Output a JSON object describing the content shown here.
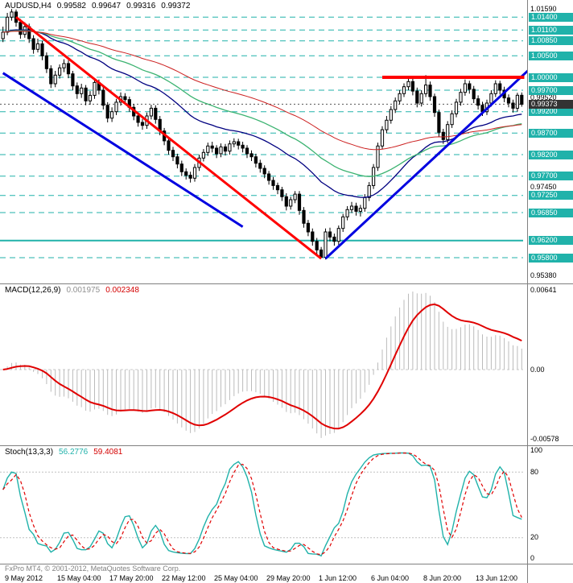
{
  "footer": {
    "copyright": "FxPro MT4, © 2001-2012, MetaQuotes Software Corp."
  },
  "chart_data": {
    "type": "candlestick",
    "symbol_period": "AUDUSD,H4",
    "ohlc_display": {
      "open": "0.99582",
      "high": "0.99647",
      "low": "0.99316",
      "close": "0.99372"
    },
    "price_range": {
      "top": 1.018,
      "bottom": 0.952
    },
    "level_color": "#20B2AA",
    "x_labels": [
      "9 May 2012",
      "15 May 04:00",
      "17 May 20:00",
      "22 May 12:00",
      "25 May 04:00",
      "29 May 20:00",
      "1 Jun 12:00",
      "6 Jun 04:00",
      "8 Jun 20:00",
      "13 Jun 12:00"
    ],
    "price_axis": {
      "plain_labels": [
        {
          "price": 1.0159,
          "label": "1.01590"
        },
        {
          "price": 0.9952,
          "label": "0.99520"
        },
        {
          "price": 0.9745,
          "label": "0.97450"
        },
        {
          "price": 0.9538,
          "label": "0.95380"
        }
      ],
      "bid": {
        "price": 0.99373,
        "label": "0.99373",
        "color": "#333333"
      }
    },
    "levels": [
      {
        "price": 1.014,
        "label": "1.01400",
        "style": "dashed"
      },
      {
        "price": 1.011,
        "label": "1.01100",
        "style": "dashed"
      },
      {
        "price": 1.0085,
        "label": "1.00850",
        "style": "dashed"
      },
      {
        "price": 1.005,
        "label": "1.00500",
        "style": "dashed"
      },
      {
        "price": 1.0,
        "label": "1.00000",
        "style": "dashed"
      },
      {
        "price": 0.997,
        "label": "0.99700",
        "style": "dashed"
      },
      {
        "price": 0.992,
        "label": "0.99200",
        "style": "dashed"
      },
      {
        "price": 0.987,
        "label": "0.98700",
        "style": "dashed"
      },
      {
        "price": 0.982,
        "label": "0.98200",
        "style": "dashed"
      },
      {
        "price": 0.977,
        "label": "0.97700",
        "style": "dashed"
      },
      {
        "price": 0.9725,
        "label": "0.97250",
        "style": "dashed"
      },
      {
        "price": 0.9685,
        "label": "0.96850",
        "style": "dashed"
      },
      {
        "price": 0.962,
        "label": "0.96200",
        "style": "solid"
      },
      {
        "price": 0.958,
        "label": "0.95800",
        "style": "dashed"
      }
    ],
    "trendlines": [
      {
        "name": "trendline-descending-red",
        "color": "#FF0000",
        "width": 3,
        "from": {
          "i": 3,
          "price": 1.014
        },
        "to": {
          "i": 73,
          "price": 0.9578
        }
      },
      {
        "name": "trendline-descending-blue",
        "color": "#0000E0",
        "width": 3,
        "from": {
          "i": 0,
          "price": 1.001
        },
        "to": {
          "i": 55,
          "price": 0.9652
        }
      },
      {
        "name": "trendline-ascending-blue",
        "color": "#0000E0",
        "width": 3,
        "from": {
          "i": 74,
          "price": 0.9578
        },
        "to": {
          "i": 123,
          "price": 1.004
        }
      },
      {
        "name": "resistance-line-red",
        "color": "#FF0000",
        "width": 4,
        "from": {
          "i": 87,
          "price": 1.0
        },
        "to": {
          "i": 119.6,
          "price": 1.0
        }
      }
    ],
    "moving_averages": [
      {
        "name": "ma-line-navy",
        "period": 34,
        "color": "#000080",
        "width": 1.3
      },
      {
        "name": "ma-line-green",
        "period": 55,
        "color": "#3CB371",
        "width": 1.3
      },
      {
        "name": "ma-line-red",
        "period": 89,
        "color": "#CC2020",
        "width": 1
      }
    ],
    "macd": {
      "label": "MACD(12,26,9)",
      "fast": 12,
      "slow": 26,
      "signal_period": 9,
      "value_main": "0.001975",
      "value_signal": "0.002348",
      "axis": {
        "max_label": "0.00641",
        "zero_label": "0.00",
        "min_label": "-0.00578"
      },
      "histogram_color": "#BBBBBB",
      "signal_color": "#E00000"
    },
    "stoch": {
      "label": "Stoch(13,3,3)",
      "k": 13,
      "d": 3,
      "slowing": 3,
      "value_main": "56.2776",
      "value_signal": "59.4081",
      "axis_labels": [
        {
          "v": 100,
          "label": "100"
        },
        {
          "v": 80,
          "label": "80"
        },
        {
          "v": 20,
          "label": "20"
        },
        {
          "v": 0,
          "label": "0"
        }
      ],
      "bands": [
        80,
        20
      ],
      "main_color": "#20B2AA",
      "signal_color": "#E00000"
    },
    "candles": [
      [
        1.009,
        1.0118,
        1.0082,
        1.0105
      ],
      [
        1.0105,
        1.015,
        1.0098,
        1.014
      ],
      [
        1.014,
        1.0159,
        1.0132,
        1.0152
      ],
      [
        1.0152,
        1.0158,
        1.0118,
        1.0128
      ],
      [
        1.0128,
        1.0136,
        1.009,
        1.01
      ],
      [
        1.01,
        1.0128,
        1.0092,
        1.0118
      ],
      [
        1.0118,
        1.0125,
        1.008,
        1.009
      ],
      [
        1.009,
        1.0098,
        1.0055,
        1.0065
      ],
      [
        1.0065,
        1.009,
        1.0058,
        1.0078
      ],
      [
        1.0078,
        1.0085,
        1.004,
        1.005
      ],
      [
        1.005,
        1.0058,
        1.001,
        1.002
      ],
      [
        1.002,
        1.0028,
        0.9975,
        0.9985
      ],
      [
        0.9985,
        1.0015,
        0.9977,
        1.0005
      ],
      [
        1.0005,
        1.003,
        0.9997,
        1.0022
      ],
      [
        1.0022,
        1.0042,
        1.0012,
        1.0032
      ],
      [
        1.0032,
        1.004,
        0.9998,
        1.0008
      ],
      [
        1.0008,
        1.0015,
        0.997,
        0.998
      ],
      [
        0.998,
        0.9988,
        0.995,
        0.9962
      ],
      [
        0.9962,
        0.9985,
        0.9952,
        0.9975
      ],
      [
        0.9975,
        0.9982,
        0.9935,
        0.9945
      ],
      [
        0.9945,
        0.9968,
        0.9936,
        0.9958
      ],
      [
        0.9958,
        0.9996,
        0.995,
        0.9988
      ],
      [
        0.9988,
        0.9995,
        0.996,
        0.997
      ],
      [
        0.997,
        0.9978,
        0.9925,
        0.9935
      ],
      [
        0.9935,
        0.9942,
        0.9895,
        0.9905
      ],
      [
        0.9905,
        0.993,
        0.9896,
        0.992
      ],
      [
        0.992,
        0.995,
        0.9912,
        0.9942
      ],
      [
        0.9942,
        0.9965,
        0.9934,
        0.9955
      ],
      [
        0.9955,
        0.9963,
        0.9938,
        0.9948
      ],
      [
        0.9948,
        0.9955,
        0.992,
        0.993
      ],
      [
        0.993,
        0.9938,
        0.99,
        0.991
      ],
      [
        0.991,
        0.9918,
        0.9885,
        0.9895
      ],
      [
        0.9895,
        0.9903,
        0.9878,
        0.9888
      ],
      [
        0.9888,
        0.9918,
        0.988,
        0.991
      ],
      [
        0.991,
        0.9936,
        0.9902,
        0.9928
      ],
      [
        0.9928,
        0.9935,
        0.9892,
        0.9902
      ],
      [
        0.9902,
        0.991,
        0.9865,
        0.9875
      ],
      [
        0.9875,
        0.9882,
        0.9842,
        0.9852
      ],
      [
        0.9852,
        0.986,
        0.982,
        0.983
      ],
      [
        0.983,
        0.9838,
        0.9805,
        0.9815
      ],
      [
        0.9815,
        0.9822,
        0.9788,
        0.9798
      ],
      [
        0.9798,
        0.9806,
        0.977,
        0.978
      ],
      [
        0.978,
        0.9788,
        0.9762,
        0.9772
      ],
      [
        0.9772,
        0.978,
        0.9755,
        0.9765
      ],
      [
        0.9765,
        0.9798,
        0.9757,
        0.979
      ],
      [
        0.979,
        0.982,
        0.9782,
        0.9812
      ],
      [
        0.9812,
        0.9833,
        0.9804,
        0.9825
      ],
      [
        0.9825,
        0.9848,
        0.9817,
        0.984
      ],
      [
        0.984,
        0.985,
        0.9825,
        0.9835
      ],
      [
        0.9835,
        0.9842,
        0.9812,
        0.9822
      ],
      [
        0.9822,
        0.9846,
        0.9814,
        0.9838
      ],
      [
        0.9838,
        0.9845,
        0.9818,
        0.9828
      ],
      [
        0.9828,
        0.9853,
        0.982,
        0.9845
      ],
      [
        0.9845,
        0.9858,
        0.9837,
        0.985
      ],
      [
        0.985,
        0.9857,
        0.9832,
        0.9842
      ],
      [
        0.9842,
        0.985,
        0.9825,
        0.9835
      ],
      [
        0.9835,
        0.9842,
        0.9812,
        0.9822
      ],
      [
        0.9822,
        0.983,
        0.9805,
        0.9815
      ],
      [
        0.9815,
        0.9822,
        0.979,
        0.98
      ],
      [
        0.98,
        0.9808,
        0.9778,
        0.9788
      ],
      [
        0.9788,
        0.9795,
        0.9765,
        0.9775
      ],
      [
        0.9775,
        0.9782,
        0.975,
        0.976
      ],
      [
        0.976,
        0.9768,
        0.9738,
        0.9748
      ],
      [
        0.9748,
        0.9755,
        0.9728,
        0.9738
      ],
      [
        0.9738,
        0.9745,
        0.9712,
        0.9722
      ],
      [
        0.9722,
        0.973,
        0.969,
        0.97
      ],
      [
        0.97,
        0.9722,
        0.9692,
        0.9715
      ],
      [
        0.9715,
        0.9735,
        0.9707,
        0.9728
      ],
      [
        0.9728,
        0.9735,
        0.968,
        0.969
      ],
      [
        0.969,
        0.9698,
        0.965,
        0.966
      ],
      [
        0.966,
        0.9668,
        0.963,
        0.964
      ],
      [
        0.964,
        0.9648,
        0.9608,
        0.9618
      ],
      [
        0.9618,
        0.9626,
        0.9588,
        0.9598
      ],
      [
        0.9598,
        0.9605,
        0.958,
        0.9581
      ],
      [
        0.9581,
        0.9648,
        0.9576,
        0.964
      ],
      [
        0.964,
        0.965,
        0.9618,
        0.9628
      ],
      [
        0.9628,
        0.9636,
        0.9608,
        0.9618
      ],
      [
        0.9618,
        0.9655,
        0.961,
        0.9648
      ],
      [
        0.9648,
        0.9682,
        0.964,
        0.9675
      ],
      [
        0.9675,
        0.97,
        0.9667,
        0.9692
      ],
      [
        0.9692,
        0.971,
        0.9684,
        0.97
      ],
      [
        0.97,
        0.9708,
        0.9678,
        0.9688
      ],
      [
        0.9688,
        0.9703,
        0.9676,
        0.9695
      ],
      [
        0.9695,
        0.9728,
        0.9687,
        0.972
      ],
      [
        0.972,
        0.9756,
        0.9712,
        0.9748
      ],
      [
        0.9748,
        0.9798,
        0.974,
        0.979
      ],
      [
        0.979,
        0.9848,
        0.9782,
        0.984
      ],
      [
        0.984,
        0.9886,
        0.9832,
        0.9878
      ],
      [
        0.9878,
        0.991,
        0.987,
        0.99
      ],
      [
        0.99,
        0.9933,
        0.9892,
        0.9925
      ],
      [
        0.9925,
        0.9953,
        0.9917,
        0.9945
      ],
      [
        0.9945,
        0.997,
        0.9937,
        0.9962
      ],
      [
        0.9962,
        0.9986,
        0.9954,
        0.9978
      ],
      [
        0.9978,
        1.0,
        0.997,
        0.999
      ],
      [
        0.999,
        0.9998,
        0.9958,
        0.9968
      ],
      [
        0.9968,
        0.9976,
        0.993,
        0.994
      ],
      [
        0.994,
        0.997,
        0.9932,
        0.9962
      ],
      [
        0.9962,
        1.0005,
        0.9954,
        0.9982
      ],
      [
        0.9982,
        0.999,
        0.9945,
        0.9955
      ],
      [
        0.9955,
        0.9962,
        0.9908,
        0.9918
      ],
      [
        0.9918,
        0.9925,
        0.9862,
        0.9872
      ],
      [
        0.9872,
        0.988,
        0.9845,
        0.9855
      ],
      [
        0.9855,
        0.9898,
        0.9847,
        0.989
      ],
      [
        0.989,
        0.9923,
        0.9882,
        0.9915
      ],
      [
        0.9915,
        0.995,
        0.9907,
        0.9942
      ],
      [
        0.9942,
        0.9973,
        0.9934,
        0.9965
      ],
      [
        0.9965,
        0.9995,
        0.9957,
        0.9985
      ],
      [
        0.9985,
        0.9992,
        0.9962,
        0.9972
      ],
      [
        0.9972,
        0.998,
        0.994,
        0.995
      ],
      [
        0.995,
        0.9958,
        0.9925,
        0.9935
      ],
      [
        0.9935,
        0.9943,
        0.991,
        0.992
      ],
      [
        0.992,
        0.9948,
        0.9912,
        0.994
      ],
      [
        0.994,
        0.997,
        0.9932,
        0.9962
      ],
      [
        0.9962,
        0.9993,
        0.9954,
        0.9985
      ],
      [
        0.9985,
        0.9992,
        0.996,
        0.997
      ],
      [
        0.997,
        0.9978,
        0.9942,
        0.9952
      ],
      [
        0.9952,
        0.996,
        0.993,
        0.994
      ],
      [
        0.994,
        0.9948,
        0.9918,
        0.9928
      ],
      [
        0.9928,
        0.9964,
        0.992,
        0.99582
      ],
      [
        0.99582,
        0.99647,
        0.99316,
        0.99372
      ]
    ]
  }
}
